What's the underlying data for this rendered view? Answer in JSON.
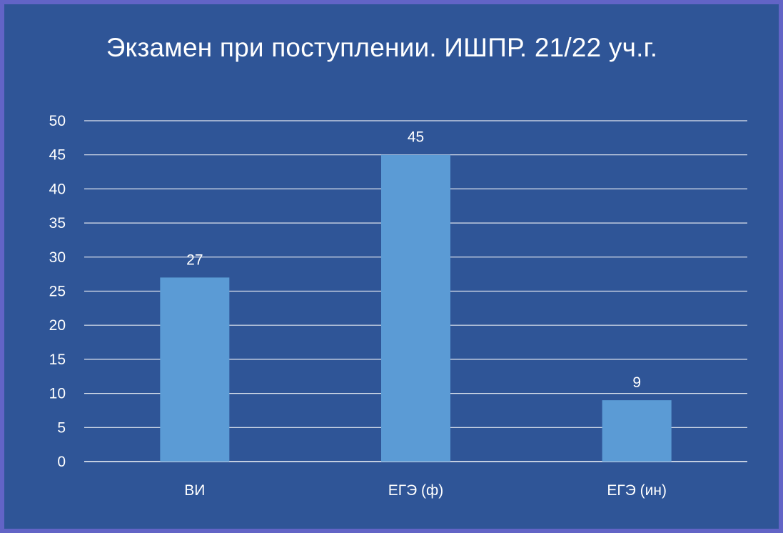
{
  "chart_data": {
    "type": "bar",
    "title": "Экзамен при поступлении. ИШПР. 21/22 уч.г.",
    "categories": [
      "ВИ",
      "ЕГЭ (ф)",
      "ЕГЭ (ин)"
    ],
    "values": [
      27,
      45,
      9
    ],
    "data_labels": [
      "27",
      "45",
      "9"
    ],
    "ylim": [
      0,
      50
    ],
    "y_ticks": [
      0,
      5,
      10,
      15,
      20,
      25,
      30,
      35,
      40,
      45,
      50
    ],
    "xlabel": "",
    "ylabel": "",
    "grid": true,
    "legend": "none",
    "colors": {
      "background": "#2f5597",
      "border": "#6264c6",
      "bar": "#5b9bd5",
      "gridline": "#ffffff",
      "text": "#ffffff"
    }
  }
}
